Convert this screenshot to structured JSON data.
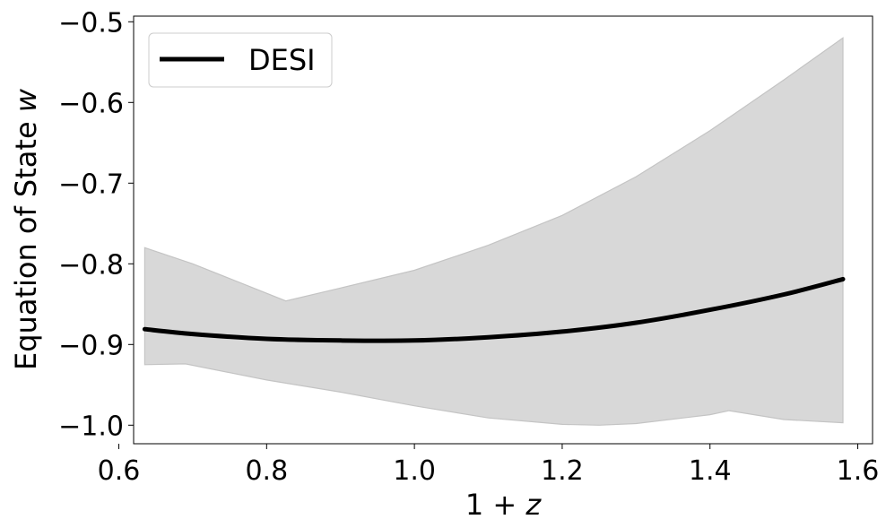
{
  "chart_data": {
    "type": "line",
    "title": "",
    "xlabel_main": "1 + ",
    "xlabel_var": "z",
    "ylabel_main": "Equation of State ",
    "ylabel_var": "w",
    "xlim": [
      0.62,
      1.62
    ],
    "ylim": [
      -1.023,
      -0.493
    ],
    "xticks": [
      0.6,
      0.8,
      1.0,
      1.2,
      1.4,
      1.6
    ],
    "xtick_labels": [
      "0.6",
      "0.8",
      "1.0",
      "1.2",
      "1.4",
      "1.6"
    ],
    "yticks": [
      -1.0,
      -0.9,
      -0.8,
      -0.7,
      -0.6,
      -0.5
    ],
    "ytick_labels": [
      "−1.0",
      "−0.9",
      "−0.8",
      "−0.7",
      "−0.6",
      "−0.5"
    ],
    "grid": false,
    "legend_position": "top-left",
    "series": [
      {
        "name": "DESI",
        "color": "#000000",
        "x": [
          0.635,
          0.7,
          0.8,
          0.9,
          1.0,
          1.1,
          1.2,
          1.3,
          1.4,
          1.5,
          1.58
        ],
        "y": [
          -0.881,
          -0.887,
          -0.893,
          -0.895,
          -0.895,
          -0.891,
          -0.884,
          -0.873,
          -0.857,
          -0.838,
          -0.819
        ]
      }
    ],
    "band": {
      "color": "#d8d8d8",
      "x_upper": [
        0.635,
        0.7,
        0.826,
        0.9,
        1.0,
        1.1,
        1.2,
        1.3,
        1.4,
        1.5,
        1.58
      ],
      "upper": [
        -0.78,
        -0.8,
        -0.846,
        -0.83,
        -0.808,
        -0.777,
        -0.74,
        -0.692,
        -0.635,
        -0.572,
        -0.52
      ],
      "x_lower": [
        1.58,
        1.5,
        1.426,
        1.4,
        1.3,
        1.25,
        1.2,
        1.1,
        1.0,
        0.9,
        0.8,
        0.69,
        0.635
      ],
      "lower": [
        -0.997,
        -0.993,
        -0.982,
        -0.987,
        -0.998,
        -1.0,
        -0.999,
        -0.991,
        -0.976,
        -0.959,
        -0.944,
        -0.924,
        -0.925
      ]
    }
  }
}
